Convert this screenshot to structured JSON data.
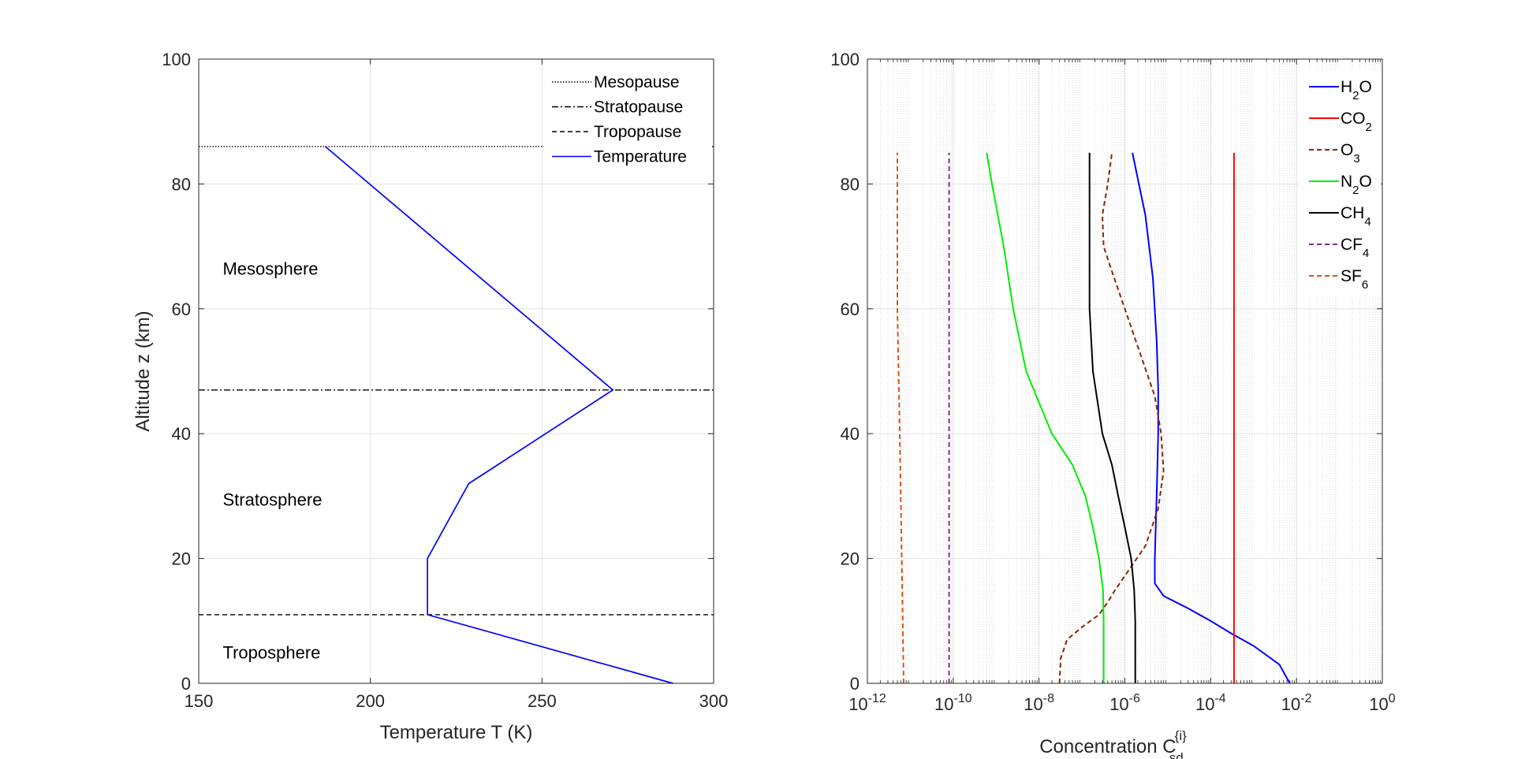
{
  "chart_data": [
    {
      "type": "line",
      "xlabel": "Temperature T (K)",
      "ylabel": "Altitude z (km)",
      "xlim": [
        150,
        300
      ],
      "ylim": [
        0,
        100
      ],
      "xticks": [
        150,
        200,
        250,
        300
      ],
      "yticks": [
        0,
        20,
        40,
        60,
        80,
        100
      ],
      "grid": true,
      "legend_position": "top-right",
      "series": [
        {
          "name": "Mesopause",
          "style": "dotted",
          "color": "#000000",
          "x": [
            150,
            300
          ],
          "y": [
            86,
            86
          ]
        },
        {
          "name": "Stratopause",
          "style": "dashdot",
          "color": "#000000",
          "x": [
            150,
            300
          ],
          "y": [
            47,
            47
          ]
        },
        {
          "name": "Tropopause",
          "style": "dashed",
          "color": "#000000",
          "x": [
            150,
            300
          ],
          "y": [
            11,
            11
          ]
        },
        {
          "name": "Temperature",
          "style": "solid",
          "color": "#0000ff",
          "x": [
            288.15,
            216.65,
            216.65,
            228.65,
            270.65,
            186.87
          ],
          "y": [
            0,
            11,
            20,
            32,
            47,
            86
          ]
        }
      ],
      "annotations": [
        {
          "text": "Mesosphere",
          "x": 157,
          "y": 66.5
        },
        {
          "text": "Stratosphere",
          "x": 157,
          "y": 29.5
        },
        {
          "text": "Troposphere",
          "x": 157,
          "y": 5
        }
      ]
    },
    {
      "type": "line",
      "xscale": "log",
      "xlabel_main": "Concentration C",
      "xlabel_sup": "{i}",
      "xlabel_sub": "sd",
      "xlim": [
        1e-12,
        1
      ],
      "ylim": [
        0,
        100
      ],
      "xtick_exponents": [
        -12,
        -10,
        -8,
        -6,
        -4,
        -2,
        0
      ],
      "xtick_base": "10",
      "yticks": [
        0,
        20,
        40,
        60,
        80,
        100
      ],
      "grid": true,
      "minor_grid": true,
      "legend_position": "top-right",
      "series": [
        {
          "name": "H2O",
          "label_main": "H",
          "label_sub": "2",
          "label_tail": "O",
          "style": "solid",
          "color": "#0000ff",
          "x": [
            0.007,
            0.004,
            0.001,
            0.0003,
            0.0001,
            3e-05,
            8e-06,
            5e-06,
            5e-06,
            5.5e-06,
            6e-06,
            6e-06,
            5.5e-06,
            4.5e-06,
            3e-06,
            1.5e-06
          ],
          "y": [
            0,
            3,
            6,
            8,
            10,
            12,
            14,
            16,
            20,
            30,
            40,
            47,
            55,
            65,
            75,
            85
          ]
        },
        {
          "name": "CO2",
          "label_main": "CO",
          "label_sub": "2",
          "label_tail": "",
          "style": "solid",
          "color": "#ff0000",
          "x": [
            0.00035,
            0.00035
          ],
          "y": [
            0,
            85
          ]
        },
        {
          "name": "O3",
          "label_main": "O",
          "label_sub": "3",
          "label_tail": "",
          "style": "dashed",
          "color": "#8b2500",
          "x": [
            3e-08,
            3.2e-08,
            4.5e-08,
            1e-07,
            2.5e-07,
            4e-07,
            6e-07,
            1.2e-06,
            3e-06,
            6e-06,
            8e-06,
            7e-06,
            5e-06,
            2.5e-06,
            1e-06,
            5e-07,
            3.2e-07,
            3e-07,
            4e-07,
            5e-07
          ],
          "y": [
            0,
            4,
            7,
            9,
            11,
            13,
            15,
            18,
            22,
            28,
            34,
            40,
            46,
            52,
            60,
            66,
            70,
            75,
            80,
            85
          ]
        },
        {
          "name": "N2O",
          "label_main": "N",
          "label_sub": "2",
          "label_tail": "O",
          "style": "solid",
          "color": "#00ee00",
          "x": [
            3.2e-07,
            3.2e-07,
            3.1e-07,
            2.5e-07,
            1.8e-07,
            1.2e-07,
            6e-08,
            2e-08,
            5e-09,
            2.5e-09,
            1.5e-09,
            8e-10,
            6e-10
          ],
          "y": [
            0,
            10,
            15,
            20,
            25,
            30,
            35,
            40,
            50,
            60,
            70,
            80,
            85
          ]
        },
        {
          "name": "CH4",
          "label_main": "CH",
          "label_sub": "4",
          "label_tail": "",
          "style": "solid",
          "color": "#000000",
          "x": [
            1.75e-06,
            1.75e-06,
            1.65e-06,
            1.4e-06,
            1e-06,
            7e-07,
            5e-07,
            3e-07,
            1.8e-07,
            1.5e-07,
            1.5e-07,
            1.5e-07
          ],
          "y": [
            0,
            10,
            15,
            20,
            25,
            30,
            35,
            40,
            50,
            60,
            70,
            85
          ]
        },
        {
          "name": "CF4",
          "label_main": "CF",
          "label_sub": "4",
          "label_tail": "",
          "style": "dashed",
          "color": "#7e2f8e",
          "x": [
            8e-11,
            8e-11
          ],
          "y": [
            0,
            85
          ]
        },
        {
          "name": "SF6",
          "label_main": "SF",
          "label_sub": "6",
          "label_tail": "",
          "style": "dashed",
          "color": "#d95319",
          "x": [
            7e-12,
            6.5e-12,
            6e-12,
            5.5e-12,
            5e-12,
            5e-12
          ],
          "y": [
            0,
            15,
            30,
            45,
            60,
            85
          ]
        }
      ]
    }
  ]
}
